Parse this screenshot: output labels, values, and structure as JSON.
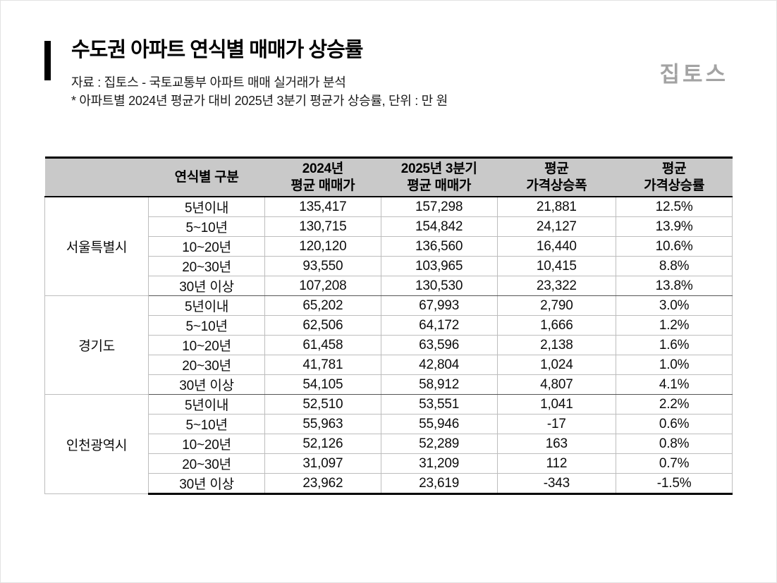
{
  "header": {
    "title": "수도권 아파트 연식별 매매가 상승률",
    "source": "자료 : 집토스 - 국토교통부 아파트 매매 실거래가 분석",
    "note": "* 아파트별 2024년 평균가 대비 2025년 3분기 평균가 상승률, 단위 : 만 원",
    "logo": "집토스"
  },
  "colors": {
    "accent_bar": "#000000",
    "header_row_bg": "#c9c9c9",
    "logo_gray": "#a3a3a3",
    "row_line": "#bdbdbd",
    "group_line": "#555555"
  },
  "table": {
    "headers": [
      "",
      "연식별 구분",
      "2024년\n평균 매매가",
      "2025년 3분기\n평균 매매가",
      "평균\n가격상승폭",
      "평균\n가격상승률"
    ]
  },
  "chart_data": {
    "type": "table",
    "title": "수도권 아파트 연식별 매매가 상승률",
    "unit": "만 원",
    "column_headers": [
      "연식별 구분",
      "2024년 평균 매매가",
      "2025년 3분기 평균 매매가",
      "평균 가격상승폭",
      "평균 가격상승률"
    ],
    "groups": [
      {
        "region": "서울특별시",
        "rows": [
          [
            "5년이내",
            "135,417",
            "157,298",
            "21,881",
            "12.5%"
          ],
          [
            "5~10년",
            "130,715",
            "154,842",
            "24,127",
            "13.9%"
          ],
          [
            "10~20년",
            "120,120",
            "136,560",
            "16,440",
            "10.6%"
          ],
          [
            "20~30년",
            "93,550",
            "103,965",
            "10,415",
            "8.8%"
          ],
          [
            "30년 이상",
            "107,208",
            "130,530",
            "23,322",
            "13.8%"
          ]
        ]
      },
      {
        "region": "경기도",
        "rows": [
          [
            "5년이내",
            "65,202",
            "67,993",
            "2,790",
            "3.0%"
          ],
          [
            "5~10년",
            "62,506",
            "64,172",
            "1,666",
            "1.2%"
          ],
          [
            "10~20년",
            "61,458",
            "63,596",
            "2,138",
            "1.6%"
          ],
          [
            "20~30년",
            "41,781",
            "42,804",
            "1,024",
            "1.0%"
          ],
          [
            "30년 이상",
            "54,105",
            "58,912",
            "4,807",
            "4.1%"
          ]
        ]
      },
      {
        "region": "인천광역시",
        "rows": [
          [
            "5년이내",
            "52,510",
            "53,551",
            "1,041",
            "2.2%"
          ],
          [
            "5~10년",
            "55,963",
            "55,946",
            "-17",
            "0.6%"
          ],
          [
            "10~20년",
            "52,126",
            "52,289",
            "163",
            "0.8%"
          ],
          [
            "20~30년",
            "31,097",
            "31,209",
            "112",
            "0.7%"
          ],
          [
            "30년 이상",
            "23,962",
            "23,619",
            "-343",
            "-1.5%"
          ]
        ]
      }
    ]
  }
}
